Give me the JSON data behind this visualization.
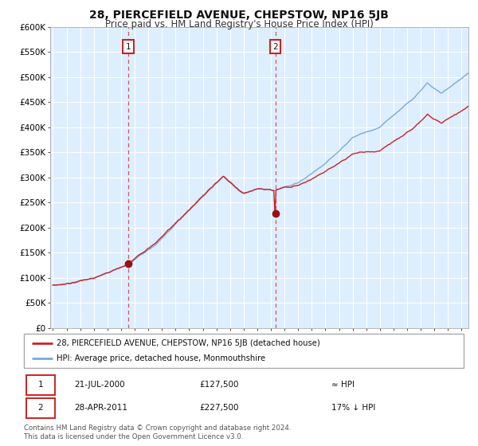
{
  "title": "28, PIERCEFIELD AVENUE, CHEPSTOW, NP16 5JB",
  "subtitle": "Price paid vs. HM Land Registry's House Price Index (HPI)",
  "background_color": "#ffffff",
  "plot_bg_color": "#ddeeff",
  "grid_color": "#ffffff",
  "ylim": [
    0,
    600000
  ],
  "yticks": [
    0,
    50000,
    100000,
    150000,
    200000,
    250000,
    300000,
    350000,
    400000,
    450000,
    500000,
    550000,
    600000
  ],
  "ytick_labels": [
    "£0",
    "£50K",
    "£100K",
    "£150K",
    "£200K",
    "£250K",
    "£300K",
    "£350K",
    "£400K",
    "£450K",
    "£500K",
    "£550K",
    "£600K"
  ],
  "hpi_color": "#7aaadd",
  "price_color": "#cc2222",
  "marker_color": "#991111",
  "sale1_date_num": 2000.55,
  "sale1_price": 127500,
  "sale2_date_num": 2011.32,
  "sale2_price": 227500,
  "annotation1": "1",
  "annotation2": "2",
  "legend_label1": "28, PIERCEFIELD AVENUE, CHEPSTOW, NP16 5JB (detached house)",
  "legend_label2": "HPI: Average price, detached house, Monmouthshire",
  "table_row1": [
    "1",
    "21-JUL-2000",
    "£127,500",
    "≈ HPI"
  ],
  "table_row2": [
    "2",
    "28-APR-2011",
    "£227,500",
    "17% ↓ HPI"
  ],
  "footer": "Contains HM Land Registry data © Crown copyright and database right 2024.\nThis data is licensed under the Open Government Licence v3.0.",
  "title_fontsize": 10,
  "subtitle_fontsize": 8.5,
  "tick_fontsize": 7.5,
  "xstart": 1994.8,
  "xend": 2025.5
}
